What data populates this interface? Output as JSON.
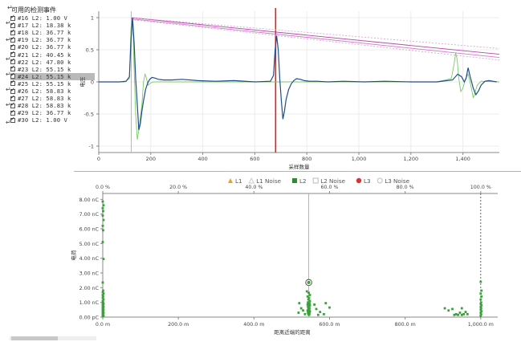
{
  "panel": {
    "title": "可用的检测事件",
    "events": [
      {
        "label": "#16 L2: 1.00 V",
        "selected": false
      },
      {
        "label": "#17 L2: 18.38 k",
        "selected": false
      },
      {
        "label": "#18 L2: 36.77 k",
        "selected": false
      },
      {
        "label": "#19 L2: 36.77 k",
        "selected": false
      },
      {
        "label": "#20 L2: 36.77 k",
        "selected": false
      },
      {
        "label": "#21 L2: 40.45 k",
        "selected": false
      },
      {
        "label": "#22 L2: 47.80 k",
        "selected": false
      },
      {
        "label": "#23 L2: 55.15 k",
        "selected": false
      },
      {
        "label": "#24 L2: 55.15 k",
        "selected": true
      },
      {
        "label": "#25 L2: 55.15 k",
        "selected": false
      },
      {
        "label": "#26 L2: 58.83 k",
        "selected": false
      },
      {
        "label": "#27 L2: 58.83 k",
        "selected": false
      },
      {
        "label": "#28 L2: 58.83 k",
        "selected": false
      },
      {
        "label": "#29 L2: 36.77 k",
        "selected": false
      },
      {
        "label": "#30 L2: 1.00 V",
        "selected": false
      }
    ]
  },
  "chart_data": [
    {
      "type": "line",
      "title": "",
      "xlabel": "采样数量",
      "ylabel": "电压",
      "xlim": [
        0,
        1540
      ],
      "ylim": [
        -1.1,
        1.1
      ],
      "x_ticks": [
        "0",
        "200",
        "400",
        "600",
        "800",
        "1,000",
        "1,200",
        "1,400"
      ],
      "y_ticks": [
        "1",
        "0.5",
        "0",
        "-0.5",
        "-1"
      ],
      "cursor_gray_x": 125,
      "cursor_red_x": 680,
      "series": [
        {
          "color": "#1f4e8c",
          "style": "solid",
          "x": [
            0,
            80,
            105,
            118,
            124,
            130,
            136,
            142,
            148,
            154,
            160,
            166,
            172,
            180,
            188,
            196,
            205,
            215,
            230,
            250,
            280,
            320,
            380,
            450,
            520,
            600,
            660,
            672,
            678,
            684,
            690,
            696,
            702,
            708,
            714,
            720,
            730,
            740,
            750,
            760,
            775,
            790,
            810,
            840,
            880,
            940,
            1020,
            1100,
            1200,
            1300,
            1360,
            1380,
            1395,
            1405,
            1412,
            1420,
            1428,
            1440,
            1450,
            1460,
            1470,
            1485,
            1500,
            1515,
            1530
          ],
          "y": [
            0,
            0,
            0.01,
            0.08,
            0.65,
            1.0,
            0.6,
            0.05,
            -0.35,
            -0.75,
            -0.65,
            -0.45,
            -0.3,
            -0.12,
            -0.02,
            0.04,
            0.07,
            0.06,
            0.04,
            0.03,
            0.03,
            0.04,
            0.02,
            0.01,
            0.02,
            0.0,
            0.01,
            0.1,
            0.5,
            0.72,
            0.5,
            0.05,
            -0.3,
            -0.58,
            -0.45,
            -0.28,
            -0.12,
            -0.03,
            0.02,
            0.05,
            0.04,
            0.02,
            0.01,
            0.01,
            0.0,
            0.01,
            0.0,
            0.01,
            0.0,
            0.0,
            0.03,
            0.12,
            0.08,
            0.0,
            0.05,
            0.22,
            0.08,
            -0.1,
            -0.2,
            -0.14,
            -0.05,
            0.01,
            0.02,
            0.01,
            0.0
          ]
        },
        {
          "color": "#7cc96a",
          "style": "solid",
          "x": [
            0,
            100,
            118,
            124,
            130,
            136,
            142,
            148,
            154,
            160,
            166,
            172,
            178,
            184,
            190,
            198,
            210,
            230,
            260,
            1300,
            1355,
            1365,
            1372,
            1378,
            1384,
            1392,
            1400,
            1410,
            1420,
            1430,
            1440,
            1455,
            1470,
            1540
          ],
          "y": [
            0,
            0,
            0.05,
            0.85,
            1.0,
            0.2,
            -0.5,
            -0.9,
            -0.75,
            -0.55,
            -0.35,
            0.0,
            0.12,
            0.05,
            -0.05,
            -0.02,
            0.0,
            0.0,
            0.0,
            0.0,
            0.05,
            0.25,
            0.45,
            0.35,
            0.05,
            -0.15,
            -0.1,
            0.05,
            0.12,
            -0.05,
            -0.25,
            -0.05,
            0.01,
            0.0
          ]
        },
        {
          "color": "#b04aa8",
          "style": "solid",
          "x": [
            124,
            1540
          ],
          "y": [
            1.0,
            0.43
          ]
        },
        {
          "color": "#d07ac8",
          "style": "solid",
          "x": [
            124,
            1540
          ],
          "y": [
            0.98,
            0.38
          ]
        },
        {
          "color": "#d9a6d6",
          "style": "dashed",
          "x": [
            124,
            1540
          ],
          "y": [
            1.0,
            0.52
          ]
        },
        {
          "color": "#d9a6d6",
          "style": "dashed",
          "x": [
            124,
            1540
          ],
          "y": [
            0.97,
            0.34
          ]
        }
      ]
    },
    {
      "type": "scatter",
      "legend": [
        {
          "name": "L1",
          "color": "#f0a020",
          "marker": "triangle"
        },
        {
          "name": "L1 Noise",
          "color": "#cccccc",
          "marker": "triangle-outline"
        },
        {
          "name": "L2",
          "color": "#2e8b2e",
          "marker": "square"
        },
        {
          "name": "L2 Noise",
          "color": "#bbbbbb",
          "marker": "square-outline"
        },
        {
          "name": "L3",
          "color": "#e03030",
          "marker": "circle"
        },
        {
          "name": "L3 Noise",
          "color": "#bbbbbb",
          "marker": "circle-outline"
        }
      ],
      "xlabel": "距离近端的距离",
      "ylabel": "电荷",
      "xlim": [
        0,
        1045
      ],
      "ylim": [
        0,
        8.4
      ],
      "x_ticks": [
        "0.0 m",
        "200.0 m",
        "400.0 m",
        "600.0 m",
        "800.0 m",
        "1,000.0 m"
      ],
      "x_tick_values": [
        0,
        200,
        400,
        600,
        800,
        1000
      ],
      "top_ticks": [
        "0.0 %",
        "20.0 %",
        "40.0 %",
        "60.0 %",
        "80.0 %",
        "100.0 %"
      ],
      "y_ticks": [
        "8.00 nC",
        "7.00 nC",
        "6.00 nC",
        "5.00 nC",
        "4.00 nC",
        "3.00 nC",
        "2.00 nC",
        "1.00 nC",
        "0.00 pC"
      ],
      "y_tick_values": [
        8,
        7,
        6,
        5,
        4,
        3,
        2,
        1,
        0
      ],
      "vlines": [
        {
          "x": 545,
          "style": "solid"
        },
        {
          "x": 1000,
          "style": "dashed"
        }
      ],
      "selected_point": {
        "x": 545,
        "y": 2.35
      },
      "series": [
        {
          "name": "L2",
          "color": "#3aa03a",
          "points": [
            [
              0,
              7.85
            ],
            [
              2,
              7.6
            ],
            [
              0,
              7.4
            ],
            [
              1,
              7.2
            ],
            [
              0,
              6.9
            ],
            [
              2,
              6.6
            ],
            [
              0,
              6.2
            ],
            [
              1,
              5.9
            ],
            [
              0,
              5.1
            ],
            [
              2,
              3.95
            ],
            [
              0,
              2.35
            ],
            [
              1,
              1.8
            ],
            [
              0,
              1.7
            ],
            [
              2,
              1.6
            ],
            [
              0,
              1.5
            ],
            [
              1,
              1.4
            ],
            [
              0,
              1.3
            ],
            [
              2,
              1.2
            ],
            [
              0,
              1.1
            ],
            [
              1,
              1.0
            ],
            [
              0,
              0.95
            ],
            [
              2,
              0.9
            ],
            [
              0,
              0.85
            ],
            [
              1,
              0.8
            ],
            [
              0,
              0.75
            ],
            [
              2,
              0.7
            ],
            [
              0,
              0.65
            ],
            [
              1,
              0.6
            ],
            [
              0,
              0.55
            ],
            [
              2,
              0.5
            ],
            [
              0,
              0.45
            ],
            [
              1,
              0.4
            ],
            [
              0,
              0.35
            ],
            [
              2,
              0.3
            ],
            [
              0,
              0.25
            ],
            [
              1,
              0.2
            ],
            [
              0,
              0.15
            ],
            [
              2,
              0.1
            ],
            [
              0,
              0.05
            ],
            [
              540,
              1.75
            ],
            [
              545,
              1.65
            ],
            [
              548,
              1.5
            ],
            [
              542,
              1.4
            ],
            [
              546,
              1.3
            ],
            [
              544,
              1.2
            ],
            [
              548,
              1.1
            ],
            [
              543,
              1.0
            ],
            [
              547,
              0.95
            ],
            [
              545,
              0.9
            ],
            [
              542,
              0.85
            ],
            [
              548,
              0.8
            ],
            [
              546,
              0.75
            ],
            [
              543,
              0.7
            ],
            [
              545,
              0.65
            ],
            [
              547,
              0.6
            ],
            [
              544,
              0.55
            ],
            [
              546,
              0.5
            ],
            [
              542,
              0.45
            ],
            [
              548,
              0.4
            ],
            [
              545,
              0.35
            ],
            [
              543,
              0.3
            ],
            [
              547,
              0.25
            ],
            [
              544,
              0.2
            ],
            [
              546,
              0.15
            ],
            [
              520,
              0.95
            ],
            [
              525,
              0.6
            ],
            [
              530,
              0.45
            ],
            [
              518,
              0.3
            ],
            [
              560,
              0.85
            ],
            [
              565,
              0.55
            ],
            [
              575,
              0.35
            ],
            [
              585,
              0.2
            ],
            [
              570,
              0.15
            ],
            [
              590,
              0.95
            ],
            [
              600,
              0.65
            ],
            [
              535,
              0.2
            ],
            [
              905,
              0.6
            ],
            [
              915,
              0.45
            ],
            [
              925,
              0.55
            ],
            [
              935,
              0.2
            ],
            [
              945,
              0.3
            ],
            [
              950,
              0.6
            ],
            [
              955,
              0.2
            ],
            [
              960,
              0.35
            ],
            [
              965,
              0.2
            ],
            [
              930,
              0.15
            ],
            [
              940,
              0.15
            ],
            [
              950,
              0.15
            ],
            [
              1000,
              2.4
            ],
            [
              1002,
              1.8
            ],
            [
              1000,
              1.6
            ],
            [
              1002,
              1.4
            ],
            [
              1000,
              1.2
            ],
            [
              1001,
              1.0
            ],
            [
              1000,
              0.9
            ],
            [
              1002,
              0.8
            ],
            [
              1000,
              0.7
            ],
            [
              1001,
              0.6
            ],
            [
              1000,
              0.5
            ],
            [
              1002,
              0.4
            ],
            [
              1000,
              0.3
            ],
            [
              1001,
              0.2
            ],
            [
              1000,
              0.1
            ]
          ]
        }
      ]
    }
  ]
}
